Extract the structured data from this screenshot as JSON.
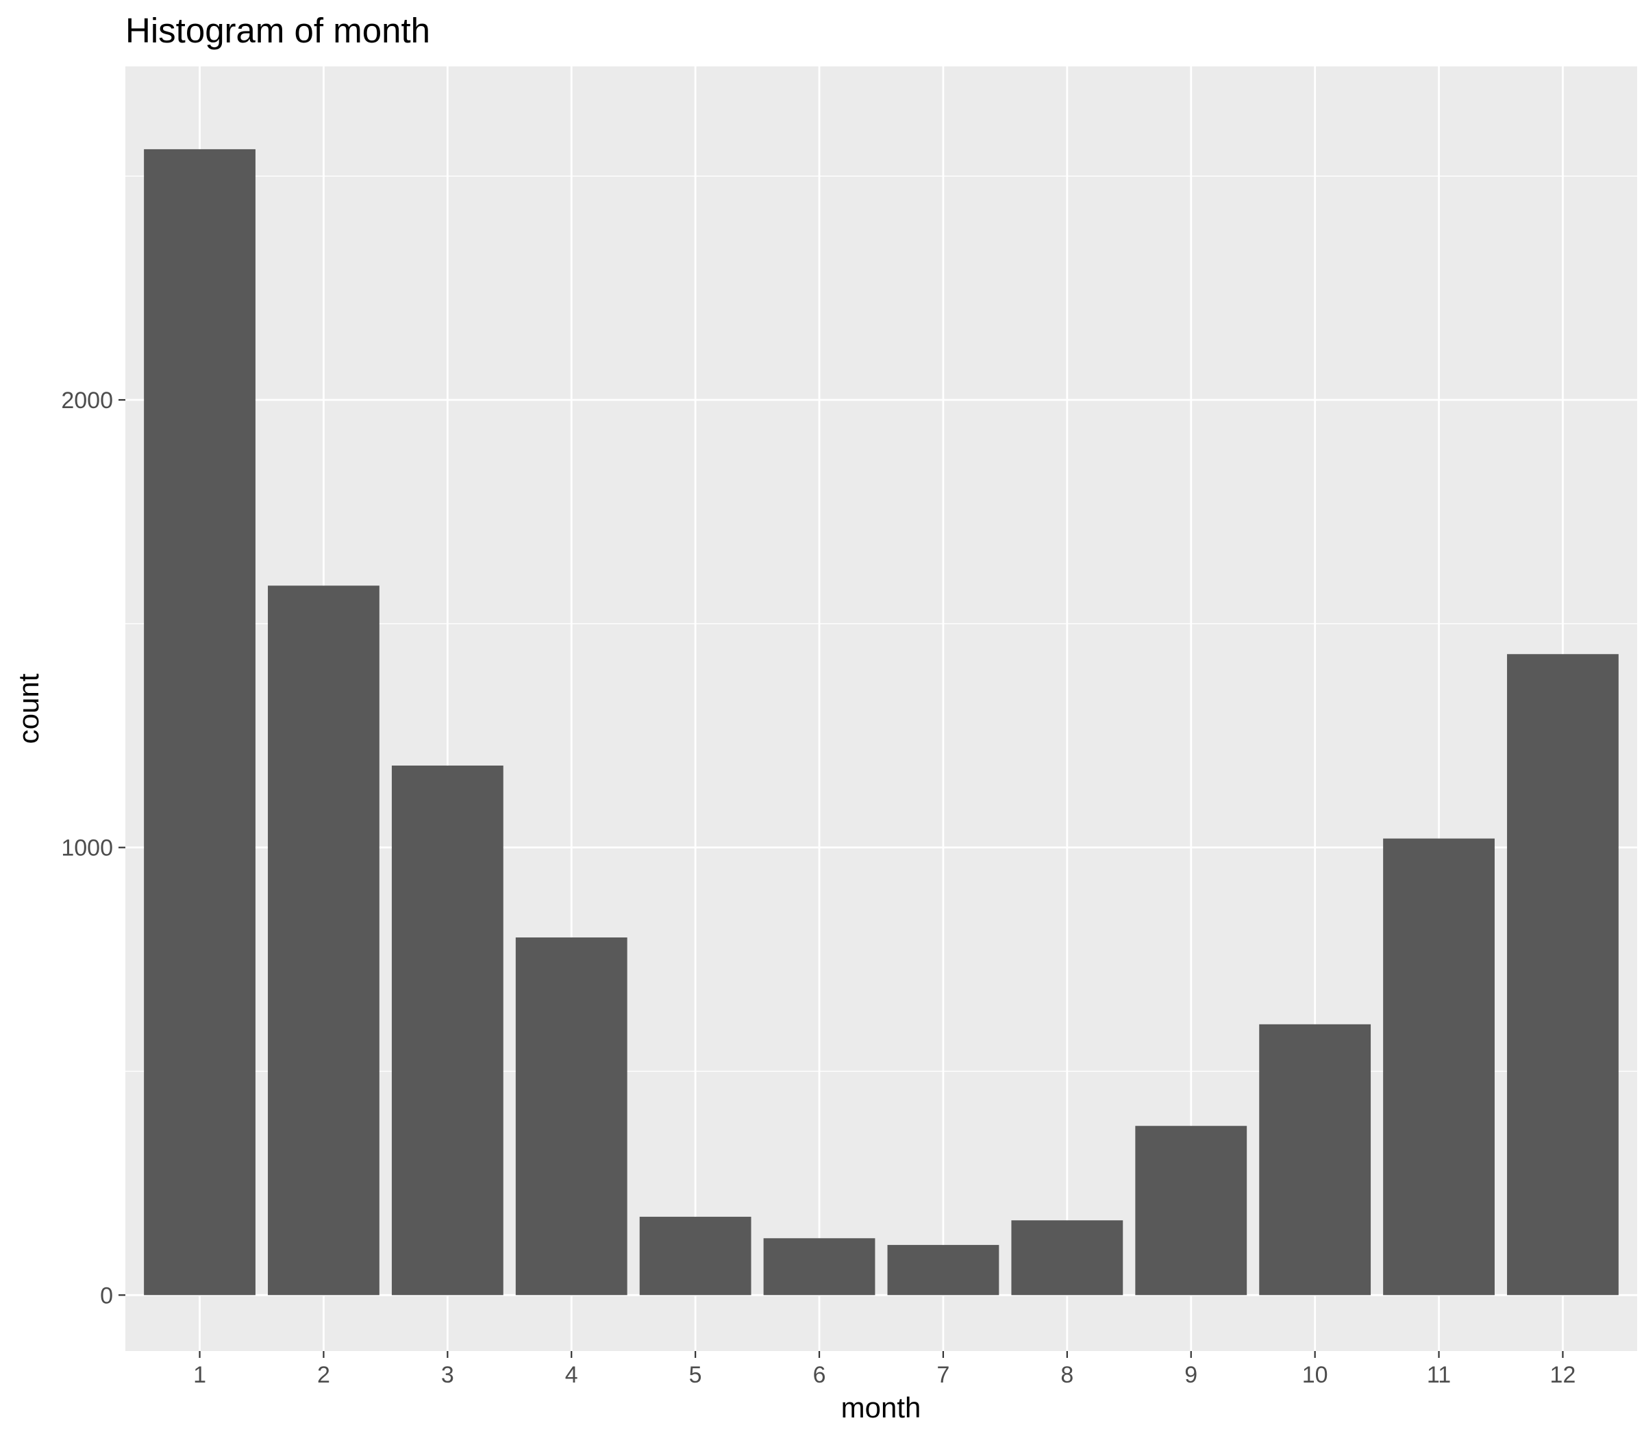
{
  "chart_data": {
    "type": "bar",
    "title": "Histogram of month",
    "xlabel": "month",
    "ylabel": "count",
    "categories": [
      "1",
      "2",
      "3",
      "4",
      "5",
      "6",
      "7",
      "8",
      "9",
      "10",
      "11",
      "12"
    ],
    "values": [
      2560,
      1585,
      1183,
      799,
      175,
      127,
      112,
      167,
      378,
      605,
      1020,
      1432
    ],
    "yticks": [
      0,
      1000,
      2000
    ],
    "ylim": [
      -125,
      2745
    ],
    "grid": true,
    "legend": "none",
    "colors": {
      "bar": "#595959",
      "panel": "#ebebeb",
      "grid": "#ffffff"
    }
  }
}
